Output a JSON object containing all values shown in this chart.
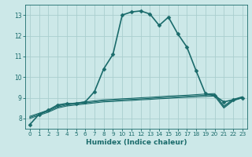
{
  "title": "",
  "xlabel": "Humidex (Indice chaleur)",
  "ylabel": "",
  "bg_color": "#cce8e8",
  "grid_color": "#aacece",
  "line_color": "#1a6b6b",
  "xlim": [
    -0.5,
    23.5
  ],
  "ylim": [
    7.5,
    13.5
  ],
  "xticks": [
    0,
    1,
    2,
    3,
    4,
    5,
    6,
    7,
    8,
    9,
    10,
    11,
    12,
    13,
    14,
    15,
    16,
    17,
    18,
    19,
    20,
    21,
    22,
    23
  ],
  "yticks": [
    8,
    9,
    10,
    11,
    12,
    13
  ],
  "curves": [
    {
      "x": [
        0,
        1,
        2,
        3,
        4,
        5,
        6,
        7,
        8,
        9,
        10,
        11,
        12,
        13,
        14,
        15,
        16,
        17,
        18,
        19,
        20,
        21,
        22,
        23
      ],
      "y": [
        7.7,
        8.2,
        8.4,
        8.65,
        8.72,
        8.72,
        8.8,
        9.3,
        10.4,
        11.1,
        13.0,
        13.15,
        13.2,
        13.05,
        12.5,
        12.9,
        12.1,
        11.45,
        10.3,
        9.2,
        9.1,
        8.8,
        8.9,
        9.0
      ],
      "marker": "D",
      "markersize": 2.5,
      "linewidth": 1.2
    },
    {
      "x": [
        0,
        1,
        2,
        3,
        4,
        5,
        6,
        7,
        8,
        9,
        10,
        11,
        12,
        13,
        14,
        15,
        16,
        17,
        18,
        19,
        20,
        21,
        22,
        23
      ],
      "y": [
        8.0,
        8.15,
        8.3,
        8.5,
        8.6,
        8.65,
        8.7,
        8.75,
        8.8,
        8.82,
        8.85,
        8.87,
        8.9,
        8.92,
        8.95,
        8.97,
        9.0,
        9.02,
        9.04,
        9.06,
        9.08,
        8.5,
        8.85,
        9.0
      ],
      "marker": null,
      "markersize": 0,
      "linewidth": 0.8
    },
    {
      "x": [
        0,
        1,
        2,
        3,
        4,
        5,
        6,
        7,
        8,
        9,
        10,
        11,
        12,
        13,
        14,
        15,
        16,
        17,
        18,
        19,
        20,
        21,
        22,
        23
      ],
      "y": [
        8.05,
        8.2,
        8.35,
        8.55,
        8.65,
        8.7,
        8.75,
        8.8,
        8.85,
        8.87,
        8.9,
        8.92,
        8.94,
        8.97,
        9.0,
        9.02,
        9.05,
        9.07,
        9.1,
        9.12,
        9.15,
        8.55,
        8.88,
        9.02
      ],
      "marker": null,
      "markersize": 0,
      "linewidth": 0.8
    },
    {
      "x": [
        0,
        1,
        2,
        3,
        4,
        5,
        6,
        7,
        8,
        9,
        10,
        11,
        12,
        13,
        14,
        15,
        16,
        17,
        18,
        19,
        20,
        21,
        22,
        23
      ],
      "y": [
        8.1,
        8.25,
        8.4,
        8.6,
        8.7,
        8.75,
        8.8,
        8.85,
        8.9,
        8.92,
        8.95,
        8.97,
        9.0,
        9.02,
        9.05,
        9.08,
        9.1,
        9.12,
        9.15,
        9.18,
        9.2,
        8.6,
        8.92,
        9.05
      ],
      "marker": null,
      "markersize": 0,
      "linewidth": 0.8
    }
  ]
}
